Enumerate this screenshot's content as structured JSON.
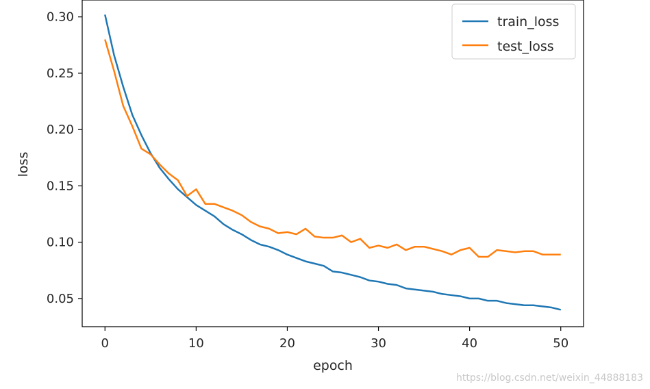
{
  "chart_data": {
    "type": "line",
    "title": "",
    "xlabel": "epoch",
    "ylabel": "loss",
    "xlim": [
      -2.5,
      52.5
    ],
    "ylim": [
      0.025,
      0.315
    ],
    "xticks": [
      0,
      10,
      20,
      30,
      40,
      50
    ],
    "yticks": [
      0.05,
      0.1,
      0.15,
      0.2,
      0.25,
      0.3
    ],
    "ytick_labels": [
      "0.05",
      "0.10",
      "0.15",
      "0.20",
      "0.25",
      "0.30"
    ],
    "xtick_labels": [
      "0",
      "10",
      "20",
      "30",
      "40",
      "50"
    ],
    "grid": false,
    "legend_position": "top-right",
    "x": [
      0,
      1,
      2,
      3,
      4,
      5,
      6,
      7,
      8,
      9,
      10,
      11,
      12,
      13,
      14,
      15,
      16,
      17,
      18,
      19,
      20,
      21,
      22,
      23,
      24,
      25,
      26,
      27,
      28,
      29,
      30,
      31,
      32,
      33,
      34,
      35,
      36,
      37,
      38,
      39,
      40,
      41,
      42,
      43,
      44,
      45,
      46,
      47,
      48,
      49,
      50
    ],
    "series": [
      {
        "name": "train_loss",
        "color": "#1f77b4",
        "values": [
          0.302,
          0.266,
          0.238,
          0.213,
          0.195,
          0.179,
          0.166,
          0.156,
          0.147,
          0.14,
          0.133,
          0.128,
          0.123,
          0.116,
          0.111,
          0.107,
          0.102,
          0.098,
          0.096,
          0.093,
          0.089,
          0.086,
          0.083,
          0.081,
          0.079,
          0.074,
          0.073,
          0.071,
          0.069,
          0.066,
          0.065,
          0.063,
          0.062,
          0.059,
          0.058,
          0.057,
          0.056,
          0.054,
          0.053,
          0.052,
          0.05,
          0.05,
          0.048,
          0.048,
          0.046,
          0.045,
          0.044,
          0.044,
          0.043,
          0.042,
          0.04
        ]
      },
      {
        "name": "test_loss",
        "color": "#ff7f0e",
        "values": [
          0.28,
          0.252,
          0.221,
          0.203,
          0.183,
          0.178,
          0.169,
          0.161,
          0.155,
          0.141,
          0.147,
          0.134,
          0.134,
          0.131,
          0.128,
          0.124,
          0.118,
          0.114,
          0.112,
          0.108,
          0.109,
          0.107,
          0.112,
          0.105,
          0.104,
          0.104,
          0.106,
          0.1,
          0.103,
          0.095,
          0.097,
          0.095,
          0.098,
          0.093,
          0.096,
          0.096,
          0.094,
          0.092,
          0.089,
          0.093,
          0.095,
          0.087,
          0.087,
          0.093,
          0.092,
          0.091,
          0.092,
          0.092,
          0.089,
          0.089,
          0.089
        ]
      }
    ]
  },
  "watermark": "https://blog.csdn.net/weixin_44888183"
}
